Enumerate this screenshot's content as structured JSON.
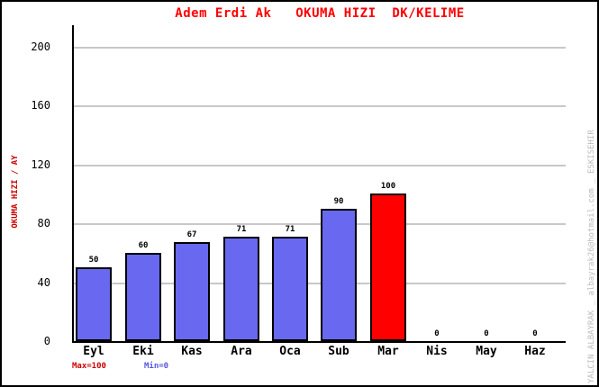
{
  "window": {
    "title": "Adem Erdi Ak   OKUMA HIZI  DK/KELIME"
  },
  "footer": {
    "max_label": "Max=100",
    "min_label": "Min=0"
  },
  "watermark": "YALCIN ALBAYRAK _ albayrak26@hotmail.com _ ESKISEHIR",
  "colors": {
    "title": "#FF0000",
    "y_axis_title": "#CC0000",
    "max_label": "#CC0000",
    "min_label": "#5555DD",
    "bar_default": "#6868F0",
    "bar_highlight": "#FF0000",
    "gridline": "#C8C8C8",
    "axis": "#000000",
    "watermark": "#BBBBBB",
    "background": "#FFFFFF"
  },
  "chart_data": {
    "type": "bar",
    "title": "Adem Erdi Ak   OKUMA HIZI  DK/KELIME",
    "categories": [
      "Eyl",
      "Eki",
      "Kas",
      "Ara",
      "Oca",
      "Sub",
      "Mar",
      "Nis",
      "May",
      "Haz"
    ],
    "values": [
      50,
      60,
      67,
      71,
      71,
      90,
      100,
      0,
      0,
      0
    ],
    "bar_colors": [
      "#6868F0",
      "#6868F0",
      "#6868F0",
      "#6868F0",
      "#6868F0",
      "#6868F0",
      "#FF0000",
      "#6868F0",
      "#6868F0",
      "#6868F0"
    ],
    "value_labels": [
      "50",
      "60",
      "67",
      "71",
      "71",
      "90",
      "100",
      "0",
      "0",
      "0"
    ],
    "xlabel": "",
    "ylabel": "OKUMA HIZI / AY",
    "ylim": [
      0,
      215
    ],
    "yticks": [
      0,
      40,
      80,
      120,
      160,
      200
    ],
    "grid": true,
    "legend_position": "none",
    "annotations": [
      "Max=100",
      "Min=0"
    ]
  }
}
